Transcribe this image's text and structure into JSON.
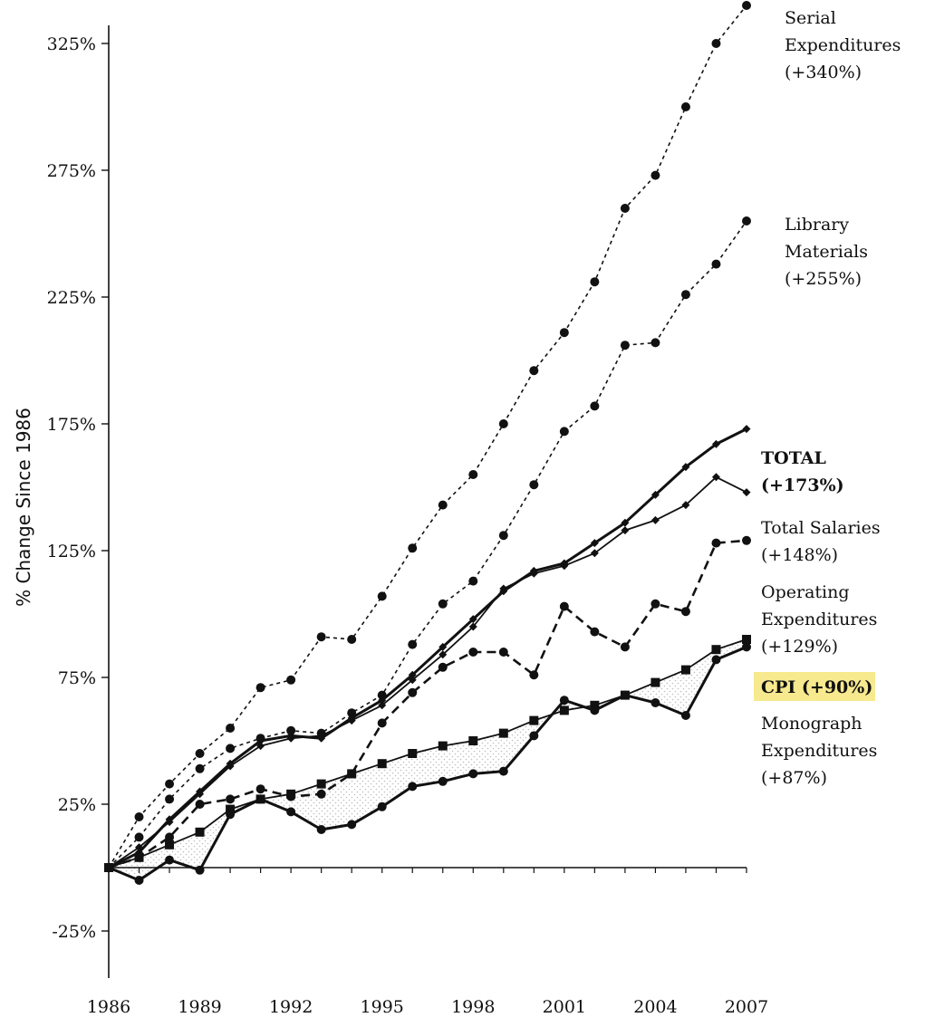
{
  "chart_data": {
    "type": "line",
    "title": "",
    "ylabel": "% Change Since 1986",
    "xlabel": "",
    "x": [
      1986,
      1987,
      1988,
      1989,
      1990,
      1991,
      1992,
      1993,
      1994,
      1995,
      1996,
      1997,
      1998,
      1999,
      2000,
      2001,
      2002,
      2003,
      2004,
      2005,
      2006,
      2007
    ],
    "xlim": [
      1986,
      2007
    ],
    "ylim": [
      -25,
      350
    ],
    "x_tick_labels": [
      "1986",
      "1989",
      "1992",
      "1995",
      "1998",
      "2001",
      "2004",
      "2007"
    ],
    "y_tick_labels": [
      "-25%",
      "25%",
      "75%",
      "125%",
      "175%",
      "225%",
      "275%",
      "325%"
    ],
    "grid": false,
    "legend": "direct labels at right end of each line",
    "series": [
      {
        "name": "Serial Expenditures",
        "label_lines": [
          "Serial",
          "Expenditures",
          "(+340%)"
        ],
        "style": "dotted",
        "marker": "circle",
        "values": [
          0,
          20,
          33,
          45,
          55,
          71,
          74,
          91,
          90,
          107,
          126,
          143,
          155,
          175,
          196,
          211,
          231,
          260,
          273,
          300,
          325,
          340
        ]
      },
      {
        "name": "Library Materials",
        "label_lines": [
          "Library",
          "Materials",
          "(+255%)"
        ],
        "style": "dotted",
        "marker": "circle",
        "values": [
          0,
          12,
          27,
          39,
          47,
          51,
          54,
          53,
          61,
          68,
          88,
          104,
          113,
          131,
          151,
          172,
          182,
          206,
          207,
          226,
          238,
          255
        ]
      },
      {
        "name": "TOTAL",
        "label_lines": [
          "TOTAL",
          "(+173%)"
        ],
        "style": "solid-thick",
        "marker": "diamond",
        "values": [
          0,
          6,
          19,
          30,
          41,
          50,
          52,
          51,
          59,
          66,
          76,
          87,
          98,
          109,
          117,
          120,
          128,
          136,
          147,
          158,
          167,
          173
        ]
      },
      {
        "name": "Total Salaries",
        "label_lines": [
          "Total Salaries",
          "(+148%)"
        ],
        "style": "solid",
        "marker": "diamond",
        "values": [
          0,
          8,
          18,
          29,
          40,
          48,
          51,
          52,
          58,
          64,
          74,
          84,
          95,
          110,
          116,
          119,
          124,
          133,
          137,
          143,
          154,
          148
        ]
      },
      {
        "name": "Operating Expenditures",
        "label_lines": [
          "Operating",
          "Expenditures",
          "(+129%)"
        ],
        "style": "dashed",
        "marker": "circle",
        "values": [
          0,
          4,
          12,
          25,
          27,
          31,
          28,
          29,
          37,
          57,
          69,
          79,
          85,
          85,
          76,
          103,
          93,
          87,
          104,
          101,
          128,
          129
        ]
      },
      {
        "name": "CPI",
        "label_lines": [
          "CPI (+90%)"
        ],
        "highlight": "#f7e98e",
        "style": "solid",
        "marker": "square",
        "values": [
          0,
          4,
          9,
          14,
          23,
          27,
          29,
          33,
          37,
          41,
          45,
          48,
          50,
          53,
          58,
          62,
          64,
          68,
          73,
          78,
          86,
          90
        ]
      },
      {
        "name": "Monograph Expenditures",
        "label_lines": [
          "Monograph",
          "Expenditures",
          "(+87%)"
        ],
        "style": "solid-thick",
        "marker": "circle",
        "values": [
          0,
          -5,
          3,
          -1,
          21,
          27,
          22,
          15,
          17,
          24,
          32,
          34,
          37,
          38,
          52,
          66,
          62,
          68,
          65,
          60,
          82,
          87
        ]
      }
    ]
  }
}
